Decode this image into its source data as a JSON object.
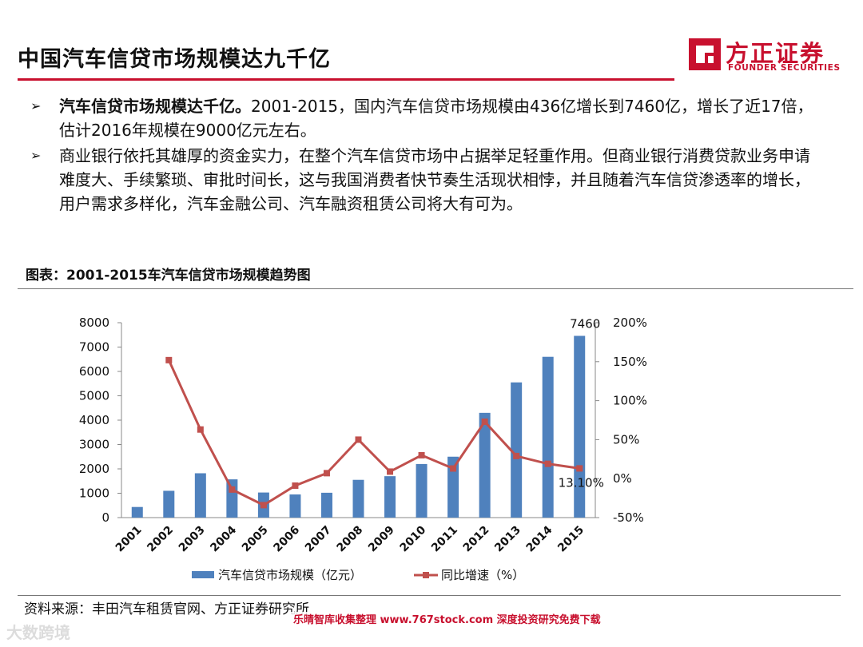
{
  "title": "中国汽车信贷市场规模达九千亿",
  "logo": {
    "cn": "方正证券",
    "en": "FOUNDER SECURITIES",
    "brand_color": "#c8102e"
  },
  "bullets": [
    {
      "marker": "➢",
      "lead": "汽车信贷市场规模达千亿。",
      "text": "2001-2015，国内汽车信贷市场规模由436亿增长到7460亿，增长了近17倍，估计2016年规模在9000亿元左右。"
    },
    {
      "marker": "➢",
      "lead": "",
      "text": "商业银行依托其雄厚的资金实力，在整个汽车信贷市场中占据举足轻重作用。但商业银行消费贷款业务申请难度大、手续繁琐、审批时间长，这与我国消费者快节奏生活现状相悖，并且随着汽车信贷渗透率的增长，用户需求多样化，汽车金融公司、汽车融资租赁公司将大有可为。"
    }
  ],
  "figure_caption": "图表：2001-2015车汽车信贷市场规模趋势图",
  "source": "资料来源：丰田汽车租赁官网、方正证券研究所",
  "watermark": "乐晴智库收集整理 www.767stock.com 深度投资研究免费下载",
  "corner_logo": "大数跨境",
  "chart_data": {
    "type": "bar",
    "categories": [
      "2001",
      "2002",
      "2003",
      "2004",
      "2005",
      "2006",
      "2007",
      "2008",
      "2009",
      "2010",
      "2011",
      "2012",
      "2013",
      "2014",
      "2015"
    ],
    "series": [
      {
        "name": "汽车信贷市场规模（亿元）",
        "kind": "bar",
        "axis": "left",
        "color": "#4f81bd",
        "values": [
          436,
          1100,
          1820,
          1570,
          1030,
          950,
          1020,
          1550,
          1700,
          2200,
          2500,
          4300,
          5550,
          6600,
          7460
        ]
      },
      {
        "name": "同比增速（%）",
        "kind": "line",
        "axis": "right",
        "color": "#c0504d",
        "values": [
          null,
          152,
          63,
          -14,
          -34,
          -9,
          7,
          50,
          9,
          30,
          13,
          73,
          29,
          19,
          13.1
        ]
      }
    ],
    "ylim_left": [
      0,
      8000
    ],
    "yticks_left": [
      "0",
      "1000",
      "2000",
      "3000",
      "4000",
      "5000",
      "6000",
      "7000",
      "8000"
    ],
    "ylim_right": [
      -50,
      200
    ],
    "yticks_right": [
      "-50%",
      "0%",
      "50%",
      "100%",
      "150%",
      "200%"
    ],
    "annotations": [
      {
        "series": 0,
        "index": 14,
        "text": "7460"
      },
      {
        "series": 1,
        "index": 14,
        "text": "13.10%"
      }
    ],
    "legend_position": "bottom",
    "grid": false
  }
}
